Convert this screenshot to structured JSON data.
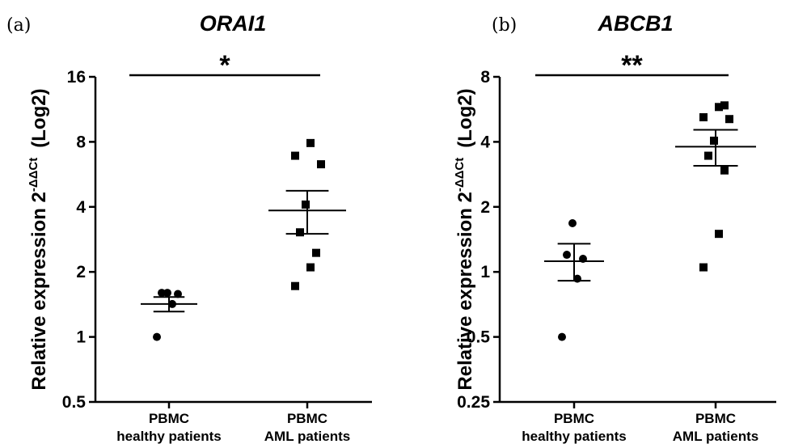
{
  "chart_data": [
    {
      "type": "scatter",
      "panel_label": "(a)",
      "title": "ORAI1",
      "ylabel_main": "Relative expression 2",
      "ylabel_superscript": "-ΔΔCt",
      "ylabel_suffix": "(Log2)",
      "y_scale": "log2",
      "ylim": [
        0.5,
        16
      ],
      "y_ticks": [
        0.5,
        1,
        2,
        4,
        8,
        16
      ],
      "y_tick_labels": [
        "0.5",
        "1",
        "2",
        "4",
        "8",
        "16"
      ],
      "categories": [
        {
          "line1": "PBMC",
          "line2": "healthy patients"
        },
        {
          "line1": "PBMC",
          "line2": "AML patients"
        }
      ],
      "groups": [
        {
          "marker": "circle",
          "values": [
            1.0,
            1.42,
            1.58,
            1.6,
            1.6
          ],
          "mean": 1.42,
          "sem_low": 1.31,
          "sem_high": 1.53
        },
        {
          "marker": "square",
          "values": [
            1.72,
            2.1,
            2.45,
            3.05,
            4.1,
            6.3,
            6.9,
            7.9
          ],
          "mean": 3.85,
          "sem_low": 3.0,
          "sem_high": 4.75
        }
      ],
      "significance": "*"
    },
    {
      "type": "scatter",
      "panel_label": "(b)",
      "title": "ABCB1",
      "ylabel_main": "Relative expression 2",
      "ylabel_superscript": "-ΔΔCt",
      "ylabel_suffix": "(Log2)",
      "y_scale": "log2",
      "ylim": [
        0.25,
        8
      ],
      "y_ticks": [
        0.25,
        0.5,
        1,
        2,
        4,
        8
      ],
      "y_tick_labels": [
        "0.25",
        "0.5",
        "1",
        "2",
        "4",
        "8"
      ],
      "categories": [
        {
          "line1": "PBMC",
          "line2": "healthy patients"
        },
        {
          "line1": "PBMC",
          "line2": "AML patients"
        }
      ],
      "groups": [
        {
          "marker": "circle",
          "values": [
            0.5,
            0.93,
            1.15,
            1.2,
            1.68
          ],
          "mean": 1.12,
          "sem_low": 0.91,
          "sem_high": 1.35
        },
        {
          "marker": "square",
          "values": [
            1.05,
            1.5,
            2.95,
            3.45,
            4.05,
            5.1,
            5.2,
            5.8,
            5.9
          ],
          "mean": 3.8,
          "sem_low": 3.1,
          "sem_high": 4.55
        }
      ],
      "significance": "**"
    }
  ]
}
